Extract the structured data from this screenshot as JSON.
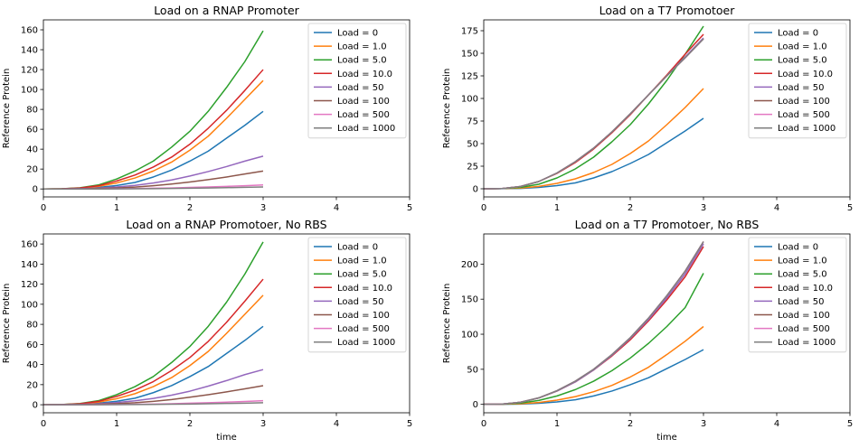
{
  "colors": {
    "series": [
      "#1f77b4",
      "#ff7f0e",
      "#2ca02c",
      "#d62728",
      "#9467bd",
      "#8c564b",
      "#e377c2",
      "#7f7f7f"
    ],
    "axis": "#000000",
    "background": "#ffffff"
  },
  "chart_data": [
    {
      "type": "line",
      "title": "Load on a RNAP Promoter",
      "xlabel": "",
      "ylabel": "Reference Protein",
      "xlim": [
        0,
        5
      ],
      "ylim": [
        -8,
        170
      ],
      "xticks": [
        0,
        1,
        2,
        3,
        4,
        5
      ],
      "yticks": [
        0,
        20,
        40,
        60,
        80,
        100,
        120,
        140,
        160
      ],
      "legend": "top-right",
      "grid": false,
      "x": [
        0,
        0.25,
        0.5,
        0.75,
        1,
        1.25,
        1.5,
        1.75,
        2,
        2.25,
        2.5,
        2.75,
        3
      ],
      "series": [
        {
          "name": "Load = 0",
          "values": [
            0,
            0.1,
            0.4,
            1.5,
            3.5,
            6.5,
            12,
            19,
            28,
            38,
            51,
            64,
            78
          ]
        },
        {
          "name": "Load = 1.0",
          "values": [
            0,
            0.2,
            0.8,
            2.6,
            6,
            11,
            18,
            27,
            39,
            53,
            71,
            90,
            109
          ]
        },
        {
          "name": "Load = 5.0",
          "values": [
            0,
            0.2,
            1.2,
            4,
            10,
            18,
            28,
            42,
            58,
            78,
            102,
            128,
            159
          ]
        },
        {
          "name": "Load = 10.0",
          "values": [
            0,
            0.2,
            1,
            3.2,
            8,
            14,
            22,
            32,
            45,
            61,
            79,
            99,
            120
          ]
        },
        {
          "name": "Load = 50",
          "values": [
            0,
            0.1,
            0.3,
            0.9,
            2,
            3.6,
            6,
            9,
            13,
            17.5,
            22.5,
            28,
            33
          ]
        },
        {
          "name": "Load = 100",
          "values": [
            0,
            0,
            0.1,
            0.5,
            1,
            1.9,
            3.2,
            4.9,
            7,
            9.4,
            12,
            15,
            18
          ]
        },
        {
          "name": "Load = 500",
          "values": [
            0,
            0,
            0,
            0.1,
            0.2,
            0.4,
            0.7,
            1,
            1.5,
            2,
            2.6,
            3.2,
            4
          ]
        },
        {
          "name": "Load = 1000",
          "values": [
            0,
            0,
            0,
            0,
            0.1,
            0.2,
            0.3,
            0.5,
            0.7,
            1,
            1.3,
            1.6,
            2
          ]
        }
      ]
    },
    {
      "type": "line",
      "title": "Load on a T7 Promotoer",
      "xlabel": "",
      "ylabel": "Reference Protein",
      "xlim": [
        0,
        5
      ],
      "ylim": [
        -9,
        187
      ],
      "xticks": [
        0,
        1,
        2,
        3,
        4,
        5
      ],
      "yticks": [
        0,
        25,
        50,
        75,
        100,
        125,
        150,
        175
      ],
      "legend": "top-right",
      "grid": false,
      "x": [
        0,
        0.25,
        0.5,
        0.75,
        1,
        1.25,
        1.5,
        1.75,
        2,
        2.25,
        2.5,
        2.75,
        3
      ],
      "series": [
        {
          "name": "Load = 0",
          "values": [
            0,
            0.1,
            0.4,
            1.5,
            3.5,
            6.5,
            12,
            19,
            28,
            38,
            51,
            64,
            78
          ]
        },
        {
          "name": "Load = 1.0",
          "values": [
            0,
            0.2,
            0.8,
            2.6,
            6,
            11,
            18,
            27,
            39,
            53,
            71,
            90,
            111
          ]
        },
        {
          "name": "Load = 5.0",
          "values": [
            0,
            0.2,
            1.5,
            5,
            12,
            22,
            35,
            52,
            71,
            94,
            120,
            149,
            180
          ]
        },
        {
          "name": "Load = 10.0",
          "values": [
            0,
            0.3,
            2.5,
            8,
            17,
            29,
            44,
            62,
            82,
            104,
            126,
            149,
            171
          ]
        },
        {
          "name": "Load = 50",
          "values": [
            0,
            0.3,
            2.5,
            8,
            17.5,
            30,
            45,
            63,
            83,
            104,
            125,
            146,
            167
          ]
        },
        {
          "name": "Load = 100",
          "values": [
            0,
            0.3,
            2.5,
            8,
            17.5,
            30,
            45,
            63,
            83,
            104,
            125,
            145,
            166
          ]
        },
        {
          "name": "Load = 500",
          "values": [
            0,
            0.3,
            2.5,
            8,
            17.5,
            30,
            45,
            63,
            83,
            104,
            125,
            145,
            166
          ]
        },
        {
          "name": "Load = 1000",
          "values": [
            0,
            0.3,
            2.5,
            8,
            17.5,
            30,
            45,
            63,
            83,
            104,
            125,
            145,
            166
          ]
        }
      ]
    },
    {
      "type": "line",
      "title": "Load on a RNAP Promotoer, No RBS",
      "xlabel": "time",
      "ylabel": "Reference Protein",
      "xlim": [
        0,
        5
      ],
      "ylim": [
        -8,
        170
      ],
      "xticks": [
        0,
        1,
        2,
        3,
        4,
        5
      ],
      "yticks": [
        0,
        20,
        40,
        60,
        80,
        100,
        120,
        140,
        160
      ],
      "legend": "top-right",
      "grid": false,
      "x": [
        0,
        0.25,
        0.5,
        0.75,
        1,
        1.25,
        1.5,
        1.75,
        2,
        2.25,
        2.5,
        2.75,
        3
      ],
      "series": [
        {
          "name": "Load = 0",
          "values": [
            0,
            0.1,
            0.4,
            1.5,
            3.5,
            6.5,
            12,
            19,
            28,
            38,
            51,
            64,
            78
          ]
        },
        {
          "name": "Load = 1.0",
          "values": [
            0,
            0.2,
            0.8,
            2.6,
            6,
            11,
            18,
            27,
            39,
            53,
            71,
            90,
            109
          ]
        },
        {
          "name": "Load = 5.0",
          "values": [
            0,
            0.2,
            1.2,
            4,
            10,
            18,
            28,
            42,
            58,
            78,
            102,
            130,
            162
          ]
        },
        {
          "name": "Load = 10.0",
          "values": [
            0,
            0.2,
            1,
            3.3,
            8.3,
            14.5,
            23,
            34,
            47,
            63,
            82,
            103,
            125
          ]
        },
        {
          "name": "Load = 50",
          "values": [
            0,
            0.1,
            0.3,
            1,
            2.2,
            3.9,
            6.3,
            9.5,
            13.5,
            18.5,
            24,
            30,
            35
          ]
        },
        {
          "name": "Load = 100",
          "values": [
            0,
            0,
            0.1,
            0.5,
            1.1,
            2,
            3.4,
            5.2,
            7.5,
            10,
            12.8,
            15.8,
            19
          ]
        },
        {
          "name": "Load = 500",
          "values": [
            0,
            0,
            0,
            0.1,
            0.2,
            0.4,
            0.7,
            1,
            1.5,
            2,
            2.6,
            3.2,
            4
          ]
        },
        {
          "name": "Load = 1000",
          "values": [
            0,
            0,
            0,
            0,
            0.1,
            0.2,
            0.3,
            0.5,
            0.7,
            1,
            1.3,
            1.6,
            2
          ]
        }
      ]
    },
    {
      "type": "line",
      "title": "Load on a T7 Promotoer, No RBS",
      "xlabel": "time",
      "ylabel": "Reference Protein",
      "xlim": [
        0,
        5
      ],
      "ylim": [
        -12,
        243
      ],
      "xticks": [
        0,
        1,
        2,
        3,
        4,
        5
      ],
      "yticks": [
        0,
        50,
        100,
        150,
        200
      ],
      "legend": "top-right",
      "grid": false,
      "x": [
        0,
        0.25,
        0.5,
        0.75,
        1,
        1.25,
        1.5,
        1.75,
        2,
        2.25,
        2.5,
        2.75,
        3
      ],
      "series": [
        {
          "name": "Load = 0",
          "values": [
            0,
            0.1,
            0.4,
            1.5,
            3.5,
            6.5,
            12,
            19,
            28,
            38,
            51,
            64,
            78
          ]
        },
        {
          "name": "Load = 1.0",
          "values": [
            0,
            0.2,
            0.8,
            2.6,
            6,
            11,
            18,
            27,
            39,
            53,
            71,
            90,
            111
          ]
        },
        {
          "name": "Load = 5.0",
          "values": [
            0,
            0.3,
            1.8,
            5.5,
            12,
            21,
            33,
            48,
            66,
            87,
            111,
            138,
            187
          ]
        },
        {
          "name": "Load = 10.0",
          "values": [
            0,
            0.4,
            3,
            9,
            19,
            32,
            49,
            69,
            92,
            119,
            149,
            182,
            225
          ]
        },
        {
          "name": "Load = 50",
          "values": [
            0,
            0.4,
            3,
            9,
            19,
            32,
            49,
            70,
            94,
            121,
            152,
            186,
            229
          ]
        },
        {
          "name": "Load = 100",
          "values": [
            0,
            0.4,
            3,
            9.2,
            19.5,
            33,
            50,
            71,
            95,
            123,
            155,
            190,
            232
          ]
        },
        {
          "name": "Load = 500",
          "values": [
            0,
            0.4,
            3,
            9.2,
            19.5,
            33,
            50,
            71,
            95,
            123,
            155,
            190,
            232
          ]
        },
        {
          "name": "Load = 1000",
          "values": [
            0,
            0.4,
            3,
            9.2,
            19.5,
            33,
            50,
            71,
            95,
            123,
            155,
            190,
            232
          ]
        }
      ]
    }
  ]
}
